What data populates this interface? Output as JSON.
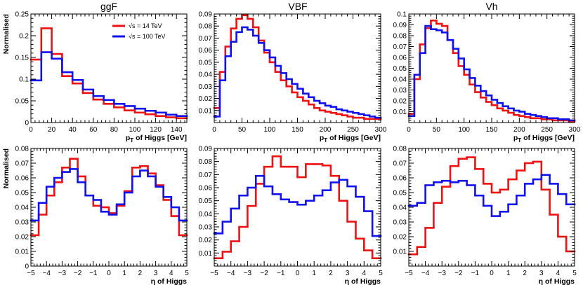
{
  "figure": {
    "column_titles": [
      "ggF",
      "VBF",
      "Vh"
    ],
    "row_ylabel": "Normalised",
    "legend": [
      {
        "label": "√s = 14 TeV",
        "color": "#ee1111"
      },
      {
        "label": "√s = 100 TeV",
        "color": "#1111ee"
      }
    ],
    "series_colors": {
      "red": "#ee1111",
      "blue": "#1111ee"
    }
  },
  "chart_data": [
    {
      "type": "histogram",
      "name": "ggF-pt",
      "title": "ggF",
      "xlabel": "pT of Higgs [GeV]",
      "xlabel_main": "p",
      "xlabel_sub": "T",
      "xlabel_rest": " of Higgs [GeV]",
      "ylabel": "Normalised",
      "xlim": [
        0,
        150
      ],
      "ylim": [
        0,
        0.25
      ],
      "xticks": [
        0,
        20,
        40,
        60,
        80,
        100,
        120,
        140
      ],
      "yticks": [
        0,
        0.05,
        0.1,
        0.15,
        0.2,
        0.25
      ],
      "ytick_labels": [
        "0",
        "0.05",
        "0.1",
        "0.15",
        "0.2",
        "0.25"
      ],
      "bin_edges": [
        0,
        10,
        20,
        30,
        40,
        50,
        60,
        70,
        80,
        90,
        100,
        110,
        120,
        130,
        140,
        150
      ],
      "series": [
        {
          "name": "√s = 14 TeV",
          "color": "red",
          "values": [
            0.145,
            0.217,
            0.158,
            0.107,
            0.09,
            0.068,
            0.053,
            0.043,
            0.035,
            0.028,
            0.023,
            0.019,
            0.015,
            0.012,
            0.01
          ]
        },
        {
          "name": "√s = 100 TeV",
          "color": "blue",
          "values": [
            0.097,
            0.162,
            0.147,
            0.116,
            0.098,
            0.076,
            0.061,
            0.052,
            0.043,
            0.038,
            0.032,
            0.027,
            0.023,
            0.018,
            0.015
          ]
        }
      ],
      "has_legend": true
    },
    {
      "type": "histogram",
      "name": "VBF-pt",
      "title": "VBF",
      "xlabel": "pT of Higgs [GeV]",
      "xlabel_main": "p",
      "xlabel_sub": "T",
      "xlabel_rest": " of Higgs [GeV]",
      "xlim": [
        0,
        300
      ],
      "ylim": [
        0,
        0.09
      ],
      "xticks": [
        0,
        50,
        100,
        150,
        200,
        250,
        300
      ],
      "yticks": [
        0.01,
        0.02,
        0.03,
        0.04,
        0.05,
        0.06,
        0.07,
        0.08,
        0.09
      ],
      "ytick_labels": [
        "0.01",
        "0.02",
        "0.03",
        "0.04",
        "0.05",
        "0.06",
        "0.07",
        "0.08",
        "0.09"
      ],
      "bin_edges": [
        0,
        10,
        20,
        30,
        40,
        50,
        60,
        70,
        80,
        90,
        100,
        110,
        120,
        130,
        140,
        150,
        160,
        170,
        180,
        190,
        200,
        210,
        220,
        230,
        240,
        250,
        260,
        270,
        280,
        290,
        300
      ],
      "series": [
        {
          "name": "√s = 14 TeV",
          "color": "red",
          "values": [
            0.012,
            0.042,
            0.063,
            0.078,
            0.086,
            0.089,
            0.086,
            0.079,
            0.068,
            0.058,
            0.05,
            0.042,
            0.035,
            0.03,
            0.025,
            0.021,
            0.018,
            0.015,
            0.012,
            0.01,
            0.009,
            0.008,
            0.007,
            0.006,
            0.005,
            0.004,
            0.004,
            0.003,
            0.003,
            0.003
          ]
        },
        {
          "name": "√s = 100 TeV",
          "color": "blue",
          "values": [
            0.005,
            0.035,
            0.055,
            0.067,
            0.075,
            0.079,
            0.077,
            0.072,
            0.066,
            0.06,
            0.054,
            0.047,
            0.041,
            0.036,
            0.032,
            0.028,
            0.024,
            0.021,
            0.018,
            0.016,
            0.014,
            0.013,
            0.011,
            0.01,
            0.009,
            0.008,
            0.007,
            0.006,
            0.005,
            0.004
          ]
        }
      ]
    },
    {
      "type": "histogram",
      "name": "Vh-pt",
      "title": "Vh",
      "xlabel": "pT of Higgs [GeV]",
      "xlabel_main": "p",
      "xlabel_sub": "T",
      "xlabel_rest": " of Higgs [GeV]",
      "xlim": [
        0,
        300
      ],
      "ylim": [
        0,
        0.1
      ],
      "xticks": [
        0,
        50,
        100,
        150,
        200,
        250,
        300
      ],
      "yticks": [
        0.01,
        0.02,
        0.03,
        0.04,
        0.05,
        0.06,
        0.07,
        0.08,
        0.09,
        0.1
      ],
      "ytick_labels": [
        "0.01",
        "0.02",
        "0.03",
        "0.04",
        "0.05",
        "0.06",
        "0.07",
        "0.08",
        "0.09",
        "0.1"
      ],
      "bin_edges": [
        0,
        10,
        20,
        30,
        40,
        50,
        60,
        70,
        80,
        90,
        100,
        110,
        120,
        130,
        140,
        150,
        160,
        170,
        180,
        190,
        200,
        210,
        220,
        230,
        240,
        250,
        260,
        270,
        280,
        290,
        300
      ],
      "series": [
        {
          "name": "√s = 14 TeV",
          "color": "red",
          "values": [
            0.008,
            0.04,
            0.072,
            0.087,
            0.094,
            0.091,
            0.089,
            0.076,
            0.064,
            0.052,
            0.044,
            0.035,
            0.028,
            0.023,
            0.019,
            0.016,
            0.013,
            0.011,
            0.009,
            0.007,
            0.006,
            0.005,
            0.004,
            0.004,
            0.003,
            0.003,
            0.002,
            0.002,
            0.002,
            0.001
          ]
        },
        {
          "name": "√s = 100 TeV",
          "color": "blue",
          "values": [
            0.006,
            0.044,
            0.064,
            0.089,
            0.086,
            0.085,
            0.083,
            0.076,
            0.068,
            0.059,
            0.049,
            0.041,
            0.034,
            0.029,
            0.025,
            0.021,
            0.018,
            0.015,
            0.013,
            0.011,
            0.01,
            0.008,
            0.007,
            0.006,
            0.005,
            0.004,
            0.004,
            0.003,
            0.003,
            0.002
          ]
        }
      ]
    },
    {
      "type": "histogram",
      "name": "ggF-eta",
      "xlabel": "η of Higgs",
      "ylabel": "Normalised",
      "xlim": [
        -5,
        5
      ],
      "ylim": [
        0,
        0.08
      ],
      "xticks": [
        -5,
        -4,
        -3,
        -2,
        -1,
        0,
        1,
        2,
        3,
        4,
        5
      ],
      "yticks": [
        0,
        0.01,
        0.02,
        0.03,
        0.04,
        0.05,
        0.06,
        0.07,
        0.08
      ],
      "ytick_labels": [
        "0",
        "0.01",
        "0.02",
        "0.03",
        "0.04",
        "0.05",
        "0.06",
        "0.07",
        "0.08"
      ],
      "bin_edges": [
        -5,
        -4.5,
        -4,
        -3.5,
        -3,
        -2.5,
        -2,
        -1.5,
        -1,
        -0.5,
        0,
        0.5,
        1,
        1.5,
        2,
        2.5,
        3,
        3.5,
        4,
        4.5,
        5
      ],
      "series": [
        {
          "name": "√s = 14 TeV",
          "color": "red",
          "values": [
            0.021,
            0.035,
            0.048,
            0.057,
            0.067,
            0.073,
            0.061,
            0.048,
            0.041,
            0.04,
            0.036,
            0.041,
            0.051,
            0.067,
            0.068,
            0.063,
            0.055,
            0.045,
            0.034,
            0.021
          ]
        },
        {
          "name": "√s = 100 TeV",
          "color": "blue",
          "values": [
            0.031,
            0.043,
            0.054,
            0.06,
            0.064,
            0.066,
            0.057,
            0.048,
            0.045,
            0.037,
            0.035,
            0.042,
            0.05,
            0.061,
            0.065,
            0.061,
            0.054,
            0.047,
            0.04,
            0.031
          ]
        }
      ]
    },
    {
      "type": "histogram",
      "name": "VBF-eta",
      "xlabel": "η of Higgs",
      "xlim": [
        -5,
        5
      ],
      "ylim": [
        0,
        0.09
      ],
      "xticks": [
        -5,
        -4,
        -3,
        -2,
        -1,
        0,
        1,
        2,
        3,
        4,
        5
      ],
      "yticks": [
        0.01,
        0.02,
        0.03,
        0.04,
        0.05,
        0.06,
        0.07,
        0.08,
        0.09
      ],
      "ytick_labels": [
        "0.01",
        "0.02",
        "0.03",
        "0.04",
        "0.05",
        "0.06",
        "0.07",
        "0.08",
        "0.09"
      ],
      "bin_edges": [
        -5,
        -4.5,
        -4,
        -3.5,
        -3,
        -2.5,
        -2,
        -1.5,
        -1,
        -0.5,
        0,
        0.5,
        1,
        1.5,
        2,
        2.5,
        3,
        3.5,
        4,
        4.5,
        5
      ],
      "series": [
        {
          "name": "√s = 14 TeV",
          "color": "red",
          "values": [
            0.006,
            0.011,
            0.019,
            0.03,
            0.046,
            0.063,
            0.076,
            0.084,
            0.076,
            0.076,
            0.068,
            0.078,
            0.078,
            0.077,
            0.069,
            0.05,
            0.034,
            0.021,
            0.012,
            0.006
          ]
        },
        {
          "name": "√s = 100 TeV",
          "color": "blue",
          "values": [
            0.025,
            0.034,
            0.044,
            0.054,
            0.06,
            0.069,
            0.061,
            0.055,
            0.051,
            0.049,
            0.047,
            0.05,
            0.054,
            0.058,
            0.064,
            0.066,
            0.061,
            0.053,
            0.042,
            0.023
          ]
        }
      ]
    },
    {
      "type": "histogram",
      "name": "Vh-eta",
      "xlabel": "η of Higgs",
      "xlim": [
        -5,
        5
      ],
      "ylim": [
        0,
        0.08
      ],
      "xticks": [
        -5,
        -4,
        -3,
        -2,
        -1,
        0,
        1,
        2,
        3,
        4,
        5
      ],
      "yticks": [
        0.01,
        0.02,
        0.03,
        0.04,
        0.05,
        0.06,
        0.07,
        0.08
      ],
      "ytick_labels": [
        "0.01",
        "0.02",
        "0.03",
        "0.04",
        "0.05",
        "0.06",
        "0.07",
        "0.08"
      ],
      "bin_edges": [
        -5,
        -4.5,
        -4,
        -3.5,
        -3,
        -2.5,
        -2,
        -1.5,
        -1,
        -0.5,
        0,
        0.5,
        1,
        1.5,
        2,
        2.5,
        3,
        3.5,
        4,
        4.5,
        5
      ],
      "series": [
        {
          "name": "√s = 14 TeV",
          "color": "red",
          "values": [
            0.008,
            0.013,
            0.026,
            0.043,
            0.054,
            0.068,
            0.073,
            0.074,
            0.066,
            0.056,
            0.05,
            0.052,
            0.059,
            0.065,
            0.07,
            0.071,
            0.052,
            0.035,
            0.02,
            0.01
          ]
        },
        {
          "name": "√s = 100 TeV",
          "color": "blue",
          "values": [
            0.041,
            0.043,
            0.055,
            0.057,
            0.058,
            0.057,
            0.058,
            0.055,
            0.048,
            0.041,
            0.034,
            0.037,
            0.042,
            0.048,
            0.056,
            0.059,
            0.062,
            0.056,
            0.049,
            0.042
          ]
        }
      ]
    }
  ]
}
